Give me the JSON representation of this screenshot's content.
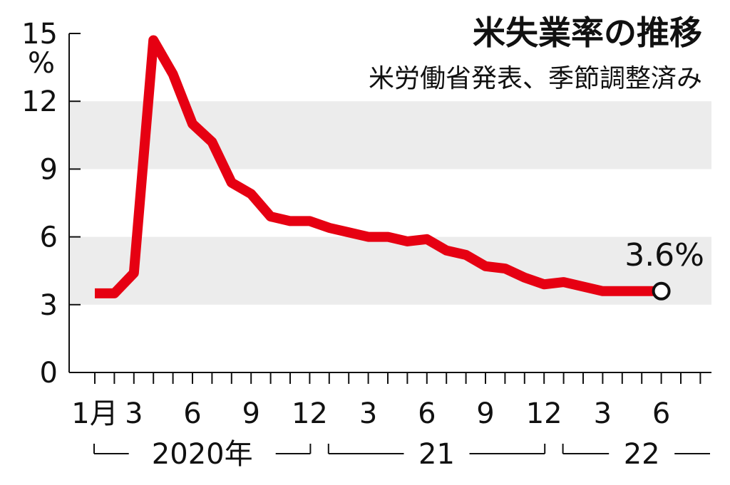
{
  "chart_data": {
    "type": "line",
    "title": "米失業率の推移",
    "subtitle": "米労働省発表、季節調整済み",
    "yunit": "%",
    "ylim": [
      0,
      15
    ],
    "yticks": [
      0,
      3,
      6,
      9,
      12,
      15
    ],
    "bands": [
      [
        3,
        6
      ],
      [
        9,
        12
      ]
    ],
    "xtick_labels": [
      {
        "index": 0,
        "label": "1月"
      },
      {
        "index": 2,
        "label": "3"
      },
      {
        "index": 5,
        "label": "6"
      },
      {
        "index": 8,
        "label": "9"
      },
      {
        "index": 11,
        "label": "12"
      },
      {
        "index": 14,
        "label": "3"
      },
      {
        "index": 17,
        "label": "6"
      },
      {
        "index": 20,
        "label": "9"
      },
      {
        "index": 23,
        "label": "12"
      },
      {
        "index": 26,
        "label": "3"
      },
      {
        "index": 29,
        "label": "6"
      }
    ],
    "year_groups": [
      {
        "label": "2020年",
        "start": 0,
        "end": 11
      },
      {
        "label": "21",
        "start": 12,
        "end": 23
      },
      {
        "label": "22",
        "start": 24,
        "end": 31
      }
    ],
    "x": [
      "2020-01",
      "2020-02",
      "2020-03",
      "2020-04",
      "2020-05",
      "2020-06",
      "2020-07",
      "2020-08",
      "2020-09",
      "2020-10",
      "2020-11",
      "2020-12",
      "2021-01",
      "2021-02",
      "2021-03",
      "2021-04",
      "2021-05",
      "2021-06",
      "2021-07",
      "2021-08",
      "2021-09",
      "2021-10",
      "2021-11",
      "2021-12",
      "2022-01",
      "2022-02",
      "2022-03",
      "2022-04",
      "2022-05",
      "2022-06"
    ],
    "series": [
      {
        "values": [
          3.5,
          3.5,
          4.4,
          14.7,
          13.2,
          11.0,
          10.2,
          8.4,
          7.9,
          6.9,
          6.7,
          6.7,
          6.4,
          6.2,
          6.0,
          6.0,
          5.8,
          5.9,
          5.4,
          5.2,
          4.7,
          4.6,
          4.2,
          3.9,
          4.0,
          3.8,
          3.6,
          3.6,
          3.6,
          3.6
        ],
        "color": "#e60012"
      }
    ],
    "annotation": {
      "index": 29,
      "text": "3.6%"
    }
  }
}
